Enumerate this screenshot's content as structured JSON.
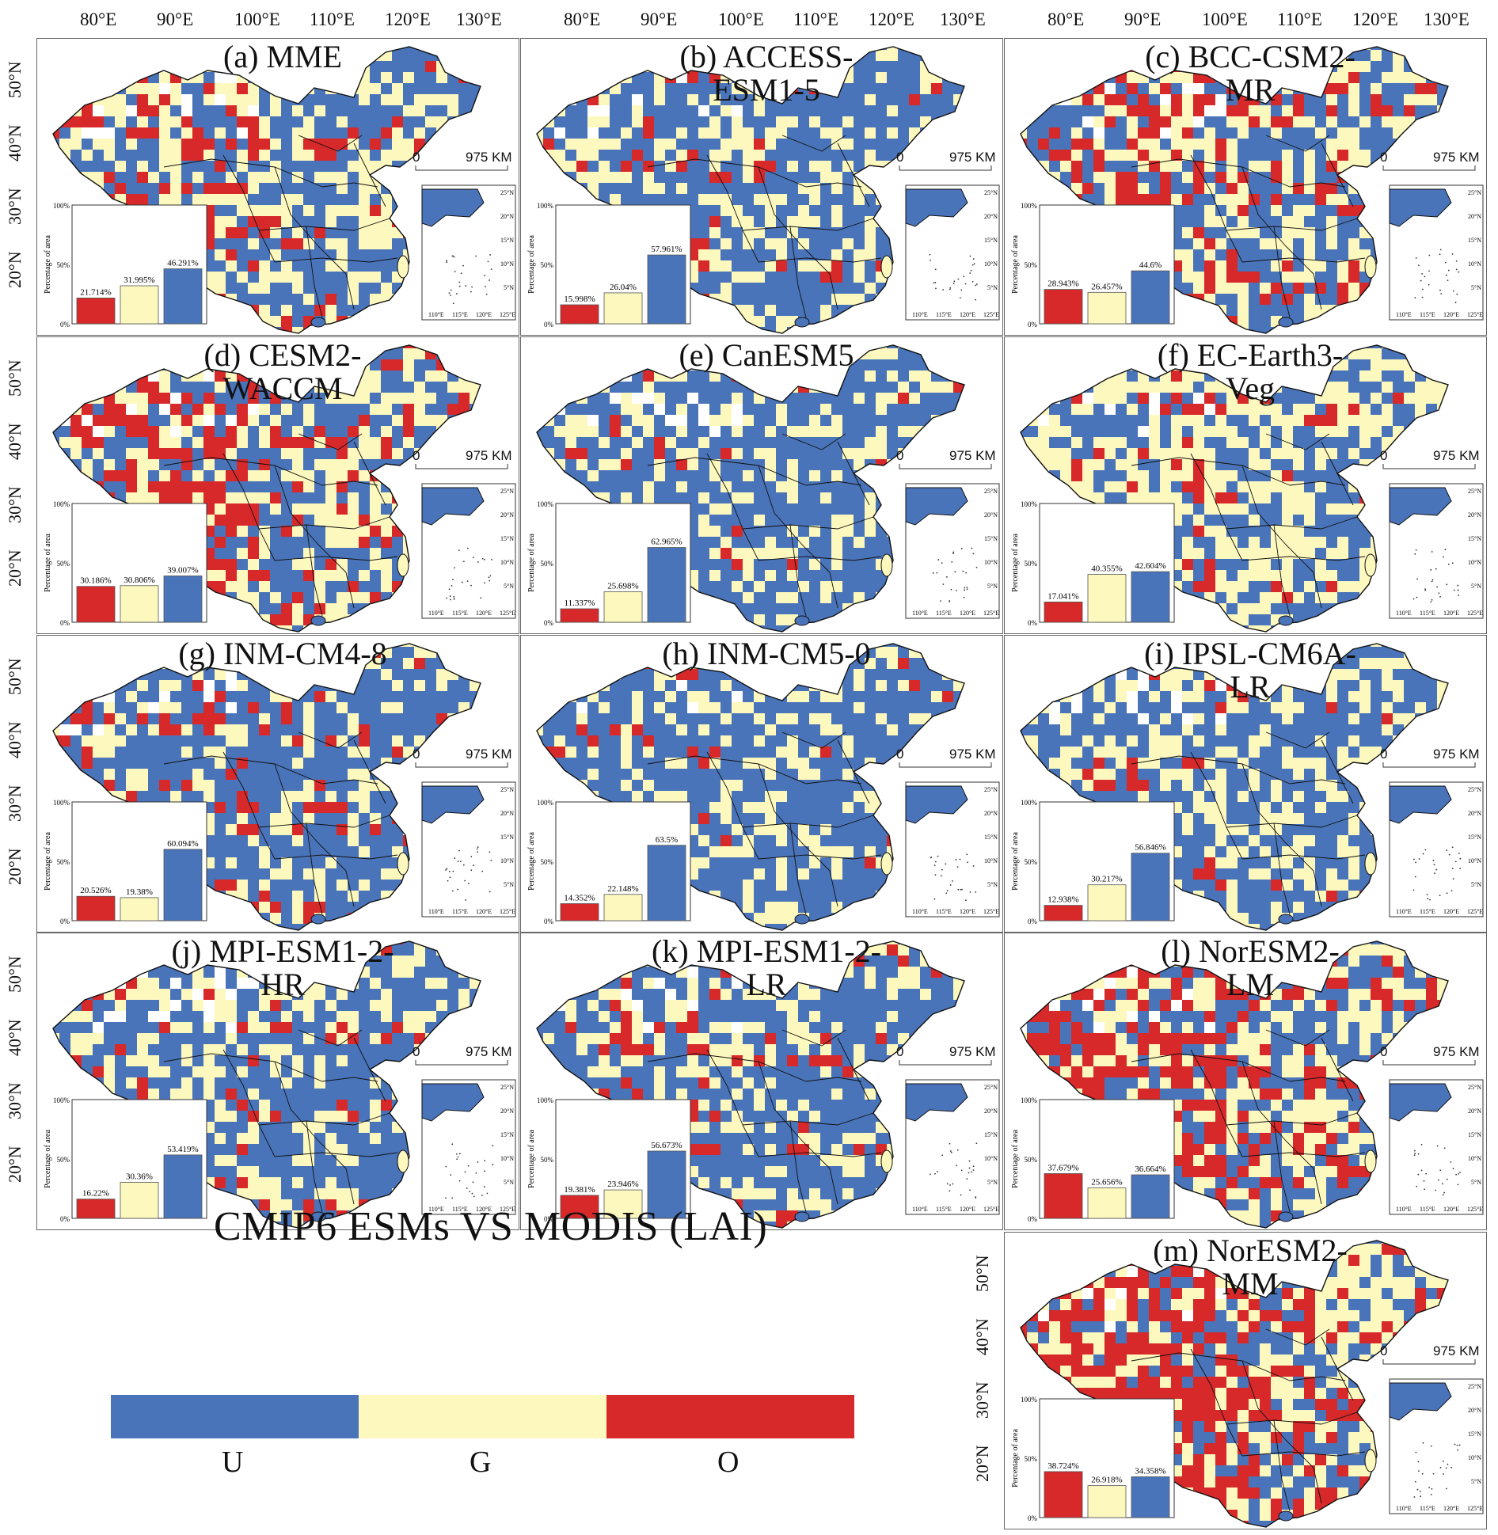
{
  "figure_title": "CMIP6 ESMs VS MODIS (LAI)",
  "colors": {
    "U": "#4a74b9",
    "G": "#fdf8be",
    "O": "#d7282a"
  },
  "legend": [
    {
      "key": "U",
      "label": "U"
    },
    {
      "key": "G",
      "label": "G"
    },
    {
      "key": "O",
      "label": "O"
    }
  ],
  "lon_ticks": [
    "80°E",
    "90°E",
    "100°E",
    "110°E",
    "120°E",
    "130°E"
  ],
  "lat_ticks": [
    "50°N",
    "40°N",
    "30°N",
    "20°N"
  ],
  "scale_bar": {
    "zero": "0",
    "distance": "975 KM"
  },
  "inset": {
    "x_ticks": [
      "110°E",
      "115°E",
      "120°E",
      "125°E"
    ],
    "y_ticks": [
      "25°N",
      "20°N",
      "15°N",
      "10°N",
      "5°N"
    ]
  },
  "bar_axis": {
    "ylabel": "Percentage of area",
    "ticks": [
      "100%",
      "50%",
      "0%"
    ]
  },
  "chart_data": [
    {
      "type": "bar",
      "title": "(a) MME",
      "categories": [
        "O",
        "G",
        "U"
      ],
      "values": [
        21.714,
        31.995,
        46.291
      ],
      "labels": [
        "21.714%",
        "31.995%",
        "46.291%"
      ],
      "ylim": [
        0,
        100
      ]
    },
    {
      "type": "bar",
      "title": "(b) ACCESS-\nESM1-5",
      "categories": [
        "O",
        "G",
        "U"
      ],
      "values": [
        15.998,
        26.04,
        57.961
      ],
      "labels": [
        "15.998%",
        "26.04%",
        "57.961%"
      ],
      "ylim": [
        0,
        100
      ]
    },
    {
      "type": "bar",
      "title": "(c) BCC-CSM2-\nMR",
      "categories": [
        "O",
        "G",
        "U"
      ],
      "values": [
        28.943,
        26.457,
        44.6
      ],
      "labels": [
        "28.943%",
        "26.457%",
        "44.6%"
      ],
      "ylim": [
        0,
        100
      ]
    },
    {
      "type": "bar",
      "title": "(d) CESM2-\nWACCM",
      "categories": [
        "O",
        "G",
        "U"
      ],
      "values": [
        30.186,
        30.806,
        39.007
      ],
      "labels": [
        "30.186%",
        "30.806%",
        "39.007%"
      ],
      "ylim": [
        0,
        100
      ]
    },
    {
      "type": "bar",
      "title": "(e) CanESM5",
      "categories": [
        "O",
        "G",
        "U"
      ],
      "values": [
        11.337,
        25.698,
        62.965
      ],
      "labels": [
        "11.337%",
        "25.698%",
        "62.965%"
      ],
      "ylim": [
        0,
        100
      ]
    },
    {
      "type": "bar",
      "title": "(f) EC-Earth3-\nVeg",
      "categories": [
        "O",
        "G",
        "U"
      ],
      "values": [
        17.041,
        40.355,
        42.604
      ],
      "labels": [
        "17.041%",
        "40.355%",
        "42.604%"
      ],
      "ylim": [
        0,
        100
      ]
    },
    {
      "type": "bar",
      "title": "(g) INM-CM4-8",
      "categories": [
        "O",
        "G",
        "U"
      ],
      "values": [
        20.526,
        19.38,
        60.094
      ],
      "labels": [
        "20.526%",
        "19.38%",
        "60.094%"
      ],
      "ylim": [
        0,
        100
      ]
    },
    {
      "type": "bar",
      "title": "(h) INM-CM5-0",
      "categories": [
        "O",
        "G",
        "U"
      ],
      "values": [
        14.352,
        22.148,
        63.5
      ],
      "labels": [
        "14.352%",
        "22.148%",
        "63.5%"
      ],
      "ylim": [
        0,
        100
      ]
    },
    {
      "type": "bar",
      "title": "(i) IPSL-CM6A-\nLR",
      "categories": [
        "O",
        "G",
        "U"
      ],
      "values": [
        12.938,
        30.217,
        56.846
      ],
      "labels": [
        "12.938%",
        "30.217%",
        "56.846%"
      ],
      "ylim": [
        0,
        100
      ]
    },
    {
      "type": "bar",
      "title": "(j) MPI-ESM1-2-\nHR",
      "categories": [
        "O",
        "G",
        "U"
      ],
      "values": [
        16.22,
        30.36,
        53.419
      ],
      "labels": [
        "16.22%",
        "30.36%",
        "53.419%"
      ],
      "ylim": [
        0,
        100
      ]
    },
    {
      "type": "bar",
      "title": "(k) MPI-ESM1-2-\nLR",
      "categories": [
        "O",
        "G",
        "U"
      ],
      "values": [
        19.381,
        23.946,
        56.673
      ],
      "labels": [
        "19.381%",
        "23.946%",
        "56.673%"
      ],
      "ylim": [
        0,
        100
      ]
    },
    {
      "type": "bar",
      "title": "(l) NorESM2-\nLM",
      "categories": [
        "O",
        "G",
        "U"
      ],
      "values": [
        37.679,
        25.656,
        36.664
      ],
      "labels": [
        "37.679%",
        "25.656%",
        "36.664%"
      ],
      "ylim": [
        0,
        100
      ]
    },
    {
      "type": "bar",
      "title": "(m) NorESM2-\nMM",
      "categories": [
        "O",
        "G",
        "U"
      ],
      "values": [
        38.724,
        26.918,
        34.358
      ],
      "labels": [
        "38.724%",
        "26.918%",
        "34.358%"
      ],
      "ylim": [
        0,
        100
      ]
    }
  ]
}
